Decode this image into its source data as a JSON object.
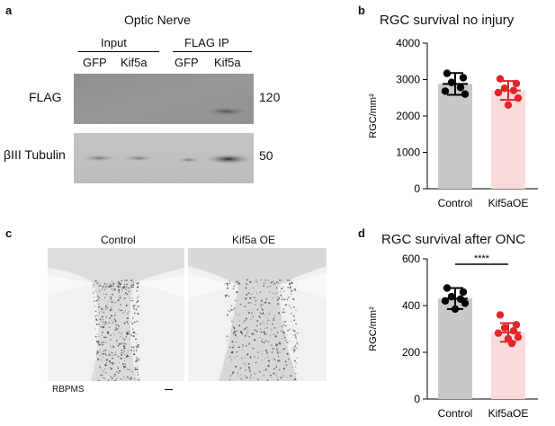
{
  "panels": {
    "a": {
      "letter": "a",
      "title": "Optic Nerve",
      "group_input": "Input",
      "group_flag_ip": "FLAG IP",
      "lanes": [
        "GFP",
        "Kif5a",
        "GFP",
        "Kif5a"
      ],
      "row_flag": "FLAG",
      "row_tubulin": "βIII Tubulin",
      "mw_flag": "120",
      "mw_tubulin": "50"
    },
    "b": {
      "letter": "b"
    },
    "c": {
      "letter": "c",
      "label_control": "Control",
      "label_oe": "Kif5a OE",
      "stain": "RBPMS"
    },
    "d": {
      "letter": "d"
    }
  },
  "colors": {
    "control": "#c8c8c8",
    "kif5a": "#fadada",
    "red_dot": "#e0262b",
    "black_dot": "#000000"
  },
  "chart_data": [
    {
      "type": "bar",
      "title": "RGC survival no injury",
      "ylabel": "RGC/mm²",
      "categories": [
        "Control",
        "Kif5aOE"
      ],
      "yticks": [
        "0",
        "1000",
        "2000",
        "3000",
        "4000"
      ],
      "ylim": [
        0,
        4000
      ],
      "values": [
        2880,
        2700
      ],
      "error_sd": [
        300,
        260
      ],
      "points": [
        [
          3170,
          3050,
          2920,
          2780,
          2680,
          2600
        ],
        [
          3020,
          2890,
          2760,
          2700,
          2640,
          2490,
          2300
        ]
      ]
    },
    {
      "type": "bar",
      "title": "RGC survival after ONC",
      "ylabel": "RGC/mm²",
      "categories": [
        "Control",
        "Kif5aOE"
      ],
      "yticks": [
        "0",
        "200",
        "400",
        "600"
      ],
      "ylim": [
        0,
        600
      ],
      "values": [
        430,
        285
      ],
      "error_sd": [
        45,
        40
      ],
      "points": [
        [
          475,
          458,
          438,
          428,
          420,
          410,
          385
        ],
        [
          360,
          318,
          305,
          292,
          282,
          265,
          258,
          238
        ]
      ],
      "significance": "****"
    }
  ]
}
